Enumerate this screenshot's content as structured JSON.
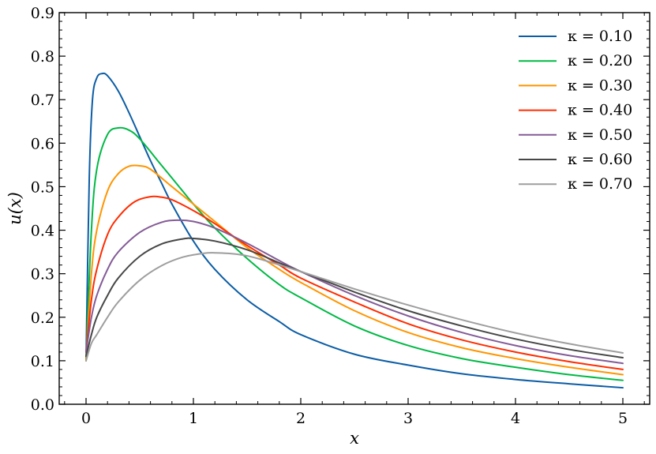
{
  "chart_data": {
    "type": "line",
    "title": "",
    "xlabel": "x",
    "ylabel": "u(x)",
    "xlim": [
      -0.25,
      5.25
    ],
    "ylim": [
      0.0,
      0.9
    ],
    "xticks": [
      0,
      1,
      2,
      3,
      4,
      5
    ],
    "xtick_labels": [
      "0",
      "1",
      "2",
      "3",
      "4",
      "5"
    ],
    "yticks": [
      0.0,
      0.1,
      0.2,
      0.3,
      0.4,
      0.5,
      0.6,
      0.7,
      0.8,
      0.9
    ],
    "ytick_labels": [
      "0.0",
      "0.1",
      "0.2",
      "0.3",
      "0.4",
      "0.5",
      "0.6",
      "0.7",
      "0.8",
      "0.9"
    ],
    "grid": false,
    "legend_position": "top-right",
    "series": [
      {
        "name": "κ = 0.10",
        "color": "#0c5da5",
        "x": [
          0,
          0.03,
          0.06,
          0.1,
          0.15,
          0.2,
          0.3,
          0.4,
          0.5,
          0.6,
          0.7,
          0.8,
          1.0,
          1.2,
          1.5,
          1.8,
          2.0,
          2.5,
          3.0,
          3.5,
          4.0,
          4.5,
          5.0
        ],
        "y": [
          0.1,
          0.52,
          0.7,
          0.75,
          0.76,
          0.755,
          0.72,
          0.67,
          0.615,
          0.56,
          0.51,
          0.46,
          0.375,
          0.31,
          0.24,
          0.19,
          0.16,
          0.115,
          0.09,
          0.07,
          0.057,
          0.047,
          0.038
        ]
      },
      {
        "name": "κ = 0.20",
        "color": "#00b945",
        "x": [
          0,
          0.05,
          0.1,
          0.2,
          0.3,
          0.4,
          0.5,
          0.7,
          0.9,
          1.0,
          1.2,
          1.5,
          1.8,
          2.0,
          2.5,
          3.0,
          3.5,
          4.0,
          4.5,
          5.0
        ],
        "y": [
          0.1,
          0.4,
          0.54,
          0.62,
          0.635,
          0.63,
          0.61,
          0.55,
          0.49,
          0.46,
          0.405,
          0.335,
          0.275,
          0.245,
          0.18,
          0.135,
          0.105,
          0.085,
          0.068,
          0.055
        ]
      },
      {
        "name": "κ = 0.30",
        "color": "#ff9500",
        "x": [
          0,
          0.05,
          0.1,
          0.2,
          0.3,
          0.4,
          0.5,
          0.6,
          0.8,
          1.0,
          1.2,
          1.5,
          1.8,
          2.0,
          2.5,
          3.0,
          3.5,
          4.0,
          4.5,
          5.0
        ],
        "y": [
          0.1,
          0.3,
          0.4,
          0.49,
          0.53,
          0.547,
          0.548,
          0.54,
          0.5,
          0.46,
          0.42,
          0.36,
          0.31,
          0.28,
          0.215,
          0.165,
          0.13,
          0.105,
          0.085,
          0.068
        ]
      },
      {
        "name": "κ = 0.40",
        "color": "#ff2c00",
        "x": [
          0,
          0.05,
          0.1,
          0.2,
          0.3,
          0.45,
          0.6,
          0.7,
          0.8,
          1.0,
          1.2,
          1.5,
          1.8,
          2.0,
          2.5,
          3.0,
          3.5,
          4.0,
          4.5,
          5.0
        ],
        "y": [
          0.12,
          0.24,
          0.31,
          0.39,
          0.43,
          0.465,
          0.477,
          0.476,
          0.47,
          0.445,
          0.415,
          0.365,
          0.32,
          0.29,
          0.235,
          0.185,
          0.148,
          0.12,
          0.098,
          0.08
        ]
      },
      {
        "name": "κ = 0.50",
        "color": "#845b97",
        "x": [
          0,
          0.05,
          0.1,
          0.2,
          0.3,
          0.5,
          0.7,
          0.85,
          1.0,
          1.2,
          1.5,
          1.8,
          2.0,
          2.5,
          3.0,
          3.5,
          4.0,
          4.5,
          5.0
        ],
        "y": [
          0.12,
          0.2,
          0.25,
          0.31,
          0.35,
          0.395,
          0.418,
          0.423,
          0.42,
          0.405,
          0.37,
          0.33,
          0.305,
          0.25,
          0.203,
          0.165,
          0.135,
          0.112,
          0.094
        ]
      },
      {
        "name": "κ = 0.60",
        "color": "#474747",
        "x": [
          0,
          0.05,
          0.1,
          0.2,
          0.3,
          0.5,
          0.7,
          0.9,
          1.0,
          1.2,
          1.5,
          1.8,
          2.0,
          2.5,
          3.0,
          3.5,
          4.0,
          4.5,
          5.0
        ],
        "y": [
          0.11,
          0.16,
          0.2,
          0.25,
          0.29,
          0.34,
          0.368,
          0.38,
          0.381,
          0.375,
          0.355,
          0.325,
          0.305,
          0.258,
          0.215,
          0.18,
          0.15,
          0.126,
          0.107
        ]
      },
      {
        "name": "κ = 0.70",
        "color": "#9e9e9e",
        "x": [
          0,
          0.05,
          0.1,
          0.2,
          0.3,
          0.5,
          0.7,
          0.9,
          1.1,
          1.2,
          1.4,
          1.6,
          2.0,
          2.5,
          3.0,
          3.5,
          4.0,
          4.5,
          5.0
        ],
        "y": [
          0.1,
          0.14,
          0.16,
          0.2,
          0.235,
          0.285,
          0.318,
          0.338,
          0.347,
          0.348,
          0.345,
          0.335,
          0.305,
          0.265,
          0.228,
          0.194,
          0.164,
          0.139,
          0.118
        ]
      }
    ]
  }
}
